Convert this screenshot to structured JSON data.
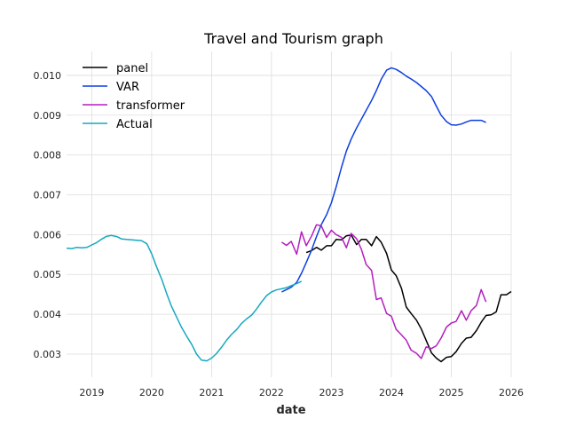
{
  "chart_data": {
    "type": "line",
    "title": "Travel and Tourism graph",
    "xlabel": "date",
    "ylabel": "",
    "xlim": [
      2018.58,
      2026.0
    ],
    "ylim": [
      0.00242,
      0.0106
    ],
    "xticks": [
      2019,
      2020,
      2021,
      2022,
      2023,
      2024,
      2025,
      2026
    ],
    "xtick_labels": [
      "2019",
      "2020",
      "2021",
      "2022",
      "2023",
      "2024",
      "2025",
      "2026"
    ],
    "yticks": [
      0.003,
      0.004,
      0.005,
      0.006,
      0.007,
      0.008,
      0.009,
      0.01
    ],
    "ytick_labels": [
      "0.003",
      "0.004",
      "0.005",
      "0.006",
      "0.007",
      "0.008",
      "0.009",
      "0.010"
    ],
    "grid": true,
    "legend_position": "top-left",
    "series": [
      {
        "name": "panel",
        "color": "#000000",
        "points": [
          [
            2022.58,
            0.00555
          ],
          [
            2022.67,
            0.0056
          ],
          [
            2022.75,
            0.00568
          ],
          [
            2022.83,
            0.00561
          ],
          [
            2022.92,
            0.00572
          ],
          [
            2023.0,
            0.00572
          ],
          [
            2023.08,
            0.00588
          ],
          [
            2023.17,
            0.00587
          ],
          [
            2023.25,
            0.00597
          ],
          [
            2023.33,
            0.00599
          ],
          [
            2023.42,
            0.00575
          ],
          [
            2023.5,
            0.00588
          ],
          [
            2023.58,
            0.00588
          ],
          [
            2023.67,
            0.00572
          ],
          [
            2023.75,
            0.00595
          ],
          [
            2023.83,
            0.00581
          ],
          [
            2023.92,
            0.00553
          ],
          [
            2024.0,
            0.00511
          ],
          [
            2024.08,
            0.00497
          ],
          [
            2024.17,
            0.00465
          ],
          [
            2024.25,
            0.00418
          ],
          [
            2024.33,
            0.00402
          ],
          [
            2024.42,
            0.00385
          ],
          [
            2024.5,
            0.00363
          ],
          [
            2024.58,
            0.00335
          ],
          [
            2024.67,
            0.00303
          ],
          [
            2024.75,
            0.0029
          ],
          [
            2024.83,
            0.00281
          ],
          [
            2024.92,
            0.00292
          ],
          [
            2025.0,
            0.00294
          ],
          [
            2025.08,
            0.00306
          ],
          [
            2025.17,
            0.00327
          ],
          [
            2025.25,
            0.0034
          ],
          [
            2025.33,
            0.00342
          ],
          [
            2025.42,
            0.00359
          ],
          [
            2025.5,
            0.0038
          ],
          [
            2025.58,
            0.00397
          ],
          [
            2025.67,
            0.00399
          ],
          [
            2025.75,
            0.00406
          ],
          [
            2025.83,
            0.00449
          ],
          [
            2025.92,
            0.00449
          ],
          [
            2026.0,
            0.00457
          ]
        ]
      },
      {
        "name": "VAR",
        "color": "#0d3fe0",
        "points": [
          [
            2022.17,
            0.00456
          ],
          [
            2022.25,
            0.00462
          ],
          [
            2022.33,
            0.00468
          ],
          [
            2022.42,
            0.0048
          ],
          [
            2022.5,
            0.00503
          ],
          [
            2022.58,
            0.0053
          ],
          [
            2022.67,
            0.00562
          ],
          [
            2022.75,
            0.00595
          ],
          [
            2022.83,
            0.00625
          ],
          [
            2022.92,
            0.0065
          ],
          [
            2023.0,
            0.0068
          ],
          [
            2023.08,
            0.0072
          ],
          [
            2023.17,
            0.0077
          ],
          [
            2023.25,
            0.0081
          ],
          [
            2023.33,
            0.0084
          ],
          [
            2023.42,
            0.00868
          ],
          [
            2023.5,
            0.0089
          ],
          [
            2023.58,
            0.00912
          ],
          [
            2023.67,
            0.00937
          ],
          [
            2023.75,
            0.00962
          ],
          [
            2023.83,
            0.0099
          ],
          [
            2023.92,
            0.01013
          ],
          [
            2024.0,
            0.01019
          ],
          [
            2024.08,
            0.01015
          ],
          [
            2024.17,
            0.01007
          ],
          [
            2024.25,
            0.00998
          ],
          [
            2024.33,
            0.00991
          ],
          [
            2024.42,
            0.00982
          ],
          [
            2024.5,
            0.00972
          ],
          [
            2024.58,
            0.00962
          ],
          [
            2024.67,
            0.00947
          ],
          [
            2024.75,
            0.00923
          ],
          [
            2024.83,
            0.009
          ],
          [
            2024.92,
            0.00884
          ],
          [
            2025.0,
            0.00876
          ],
          [
            2025.08,
            0.00875
          ],
          [
            2025.17,
            0.00878
          ],
          [
            2025.25,
            0.00883
          ],
          [
            2025.33,
            0.00887
          ],
          [
            2025.42,
            0.00887
          ],
          [
            2025.5,
            0.00887
          ],
          [
            2025.58,
            0.00882
          ]
        ]
      },
      {
        "name": "transformer",
        "color": "#b31fbf",
        "points": [
          [
            2022.17,
            0.00581
          ],
          [
            2022.25,
            0.00573
          ],
          [
            2022.33,
            0.00583
          ],
          [
            2022.42,
            0.00551
          ],
          [
            2022.5,
            0.00607
          ],
          [
            2022.58,
            0.00572
          ],
          [
            2022.67,
            0.00597
          ],
          [
            2022.75,
            0.00625
          ],
          [
            2022.83,
            0.00622
          ],
          [
            2022.92,
            0.00593
          ],
          [
            2023.0,
            0.00611
          ],
          [
            2023.08,
            0.006
          ],
          [
            2023.17,
            0.00593
          ],
          [
            2023.25,
            0.00567
          ],
          [
            2023.33,
            0.00603
          ],
          [
            2023.42,
            0.0059
          ],
          [
            2023.5,
            0.00563
          ],
          [
            2023.58,
            0.00525
          ],
          [
            2023.67,
            0.0051
          ],
          [
            2023.75,
            0.00437
          ],
          [
            2023.83,
            0.00441
          ],
          [
            2023.92,
            0.00402
          ],
          [
            2024.0,
            0.00395
          ],
          [
            2024.08,
            0.00362
          ],
          [
            2024.17,
            0.00348
          ],
          [
            2024.25,
            0.00335
          ],
          [
            2024.33,
            0.0031
          ],
          [
            2024.42,
            0.00302
          ],
          [
            2024.5,
            0.00289
          ],
          [
            2024.58,
            0.00318
          ],
          [
            2024.67,
            0.00314
          ],
          [
            2024.75,
            0.00321
          ],
          [
            2024.83,
            0.0034
          ],
          [
            2024.92,
            0.00368
          ],
          [
            2025.0,
            0.00378
          ],
          [
            2025.08,
            0.00382
          ],
          [
            2025.17,
            0.00409
          ],
          [
            2025.25,
            0.00385
          ],
          [
            2025.33,
            0.00409
          ],
          [
            2025.42,
            0.00422
          ],
          [
            2025.5,
            0.00462
          ],
          [
            2025.58,
            0.00431
          ]
        ]
      },
      {
        "name": "Actual",
        "color": "#17a9bf",
        "points": [
          [
            2018.58,
            0.00566
          ],
          [
            2018.67,
            0.00565
          ],
          [
            2018.75,
            0.00568
          ],
          [
            2018.83,
            0.00567
          ],
          [
            2018.92,
            0.00568
          ],
          [
            2019.0,
            0.00574
          ],
          [
            2019.08,
            0.0058
          ],
          [
            2019.17,
            0.00589
          ],
          [
            2019.25,
            0.00596
          ],
          [
            2019.33,
            0.00598
          ],
          [
            2019.42,
            0.00595
          ],
          [
            2019.5,
            0.00589
          ],
          [
            2019.58,
            0.00588
          ],
          [
            2019.67,
            0.00587
          ],
          [
            2019.75,
            0.00586
          ],
          [
            2019.83,
            0.00585
          ],
          [
            2019.92,
            0.00577
          ],
          [
            2020.0,
            0.00552
          ],
          [
            2020.08,
            0.0052
          ],
          [
            2020.17,
            0.00487
          ],
          [
            2020.25,
            0.00452
          ],
          [
            2020.33,
            0.0042
          ],
          [
            2020.42,
            0.00392
          ],
          [
            2020.5,
            0.00367
          ],
          [
            2020.58,
            0.00346
          ],
          [
            2020.67,
            0.00324
          ],
          [
            2020.75,
            0.003
          ],
          [
            2020.83,
            0.00285
          ],
          [
            2020.92,
            0.00283
          ],
          [
            2021.0,
            0.0029
          ],
          [
            2021.08,
            0.00301
          ],
          [
            2021.17,
            0.00318
          ],
          [
            2021.25,
            0.00335
          ],
          [
            2021.33,
            0.00349
          ],
          [
            2021.42,
            0.00362
          ],
          [
            2021.5,
            0.00377
          ],
          [
            2021.58,
            0.00388
          ],
          [
            2021.67,
            0.00398
          ],
          [
            2021.75,
            0.00413
          ],
          [
            2021.83,
            0.0043
          ],
          [
            2021.92,
            0.00447
          ],
          [
            2022.0,
            0.00456
          ],
          [
            2022.08,
            0.00461
          ],
          [
            2022.17,
            0.00464
          ],
          [
            2022.25,
            0.00467
          ],
          [
            2022.33,
            0.00472
          ],
          [
            2022.42,
            0.00477
          ],
          [
            2022.5,
            0.00483
          ]
        ]
      }
    ]
  }
}
